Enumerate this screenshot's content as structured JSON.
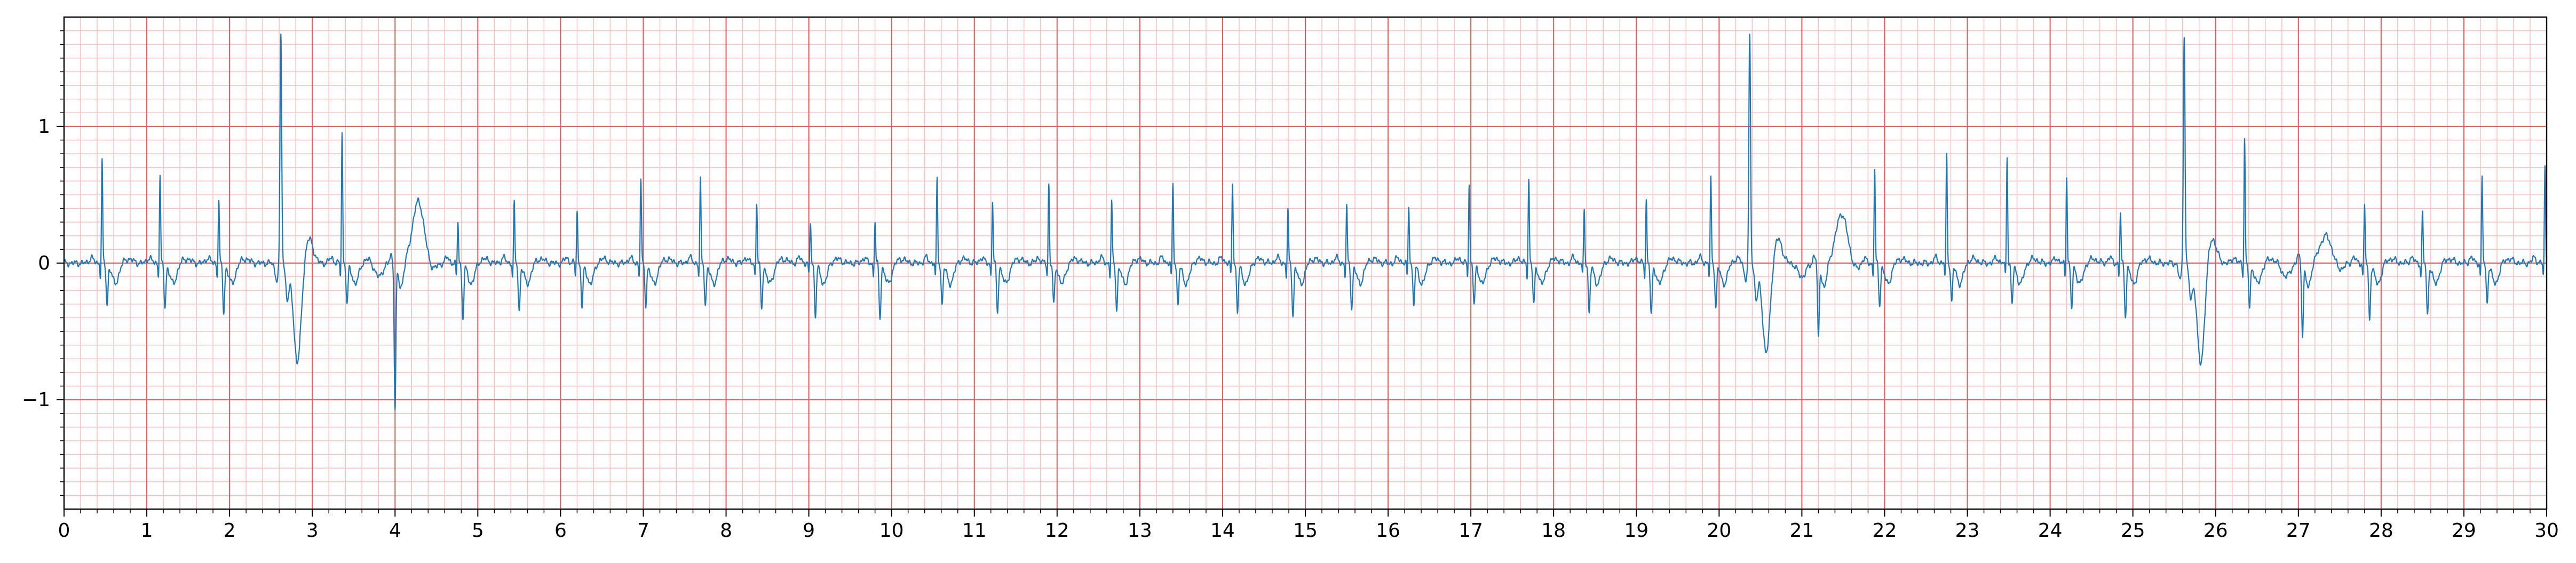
{
  "chart_data": {
    "type": "line",
    "title": "",
    "xlabel": "",
    "ylabel": "",
    "xlim": [
      0,
      30
    ],
    "ylim": [
      -1.8,
      1.8
    ],
    "x_ticks": [
      0,
      1,
      2,
      3,
      4,
      5,
      6,
      7,
      8,
      9,
      10,
      11,
      12,
      13,
      14,
      15,
      16,
      17,
      18,
      19,
      20,
      21,
      22,
      23,
      24,
      25,
      26,
      27,
      28,
      29,
      30
    ],
    "x_tick_labels": [
      "0",
      "1",
      "2",
      "3",
      "4",
      "5",
      "6",
      "7",
      "8",
      "9",
      "10",
      "11",
      "12",
      "13",
      "14",
      "15",
      "16",
      "17",
      "18",
      "19",
      "20",
      "21",
      "22",
      "23",
      "24",
      "25",
      "26",
      "27",
      "28",
      "29",
      "30"
    ],
    "y_ticks": [
      -1,
      0,
      1
    ],
    "y_tick_labels": [
      "−1",
      "0",
      "1"
    ],
    "grid": {
      "major": true,
      "minor": true,
      "major_color": "#e8565a",
      "minor_color": "#f7bcbc",
      "minor_x_step": 0.2,
      "minor_y_step": 0.1
    },
    "line_color": "#1f77b4",
    "baseline": 0.0,
    "beats": [
      {
        "t": 0.46,
        "r": 0.75,
        "s": -0.3,
        "tw": 0.03,
        "kind": "n"
      },
      {
        "t": 1.16,
        "r": 0.64,
        "s": -0.32,
        "tw": 0.03,
        "kind": "n"
      },
      {
        "t": 1.87,
        "r": 0.46,
        "s": -0.36,
        "tw": 0.03,
        "kind": "n"
      },
      {
        "t": 2.62,
        "r": 1.67,
        "s": -0.73,
        "tw": 0.0,
        "kind": "v"
      },
      {
        "t": 3.36,
        "r": 0.95,
        "s": -0.3,
        "tw": 0.03,
        "kind": "n"
      },
      {
        "t": 4.0,
        "r": 0.08,
        "s": -1.05,
        "tw": 0.45,
        "kind": "v2"
      },
      {
        "t": 4.76,
        "r": 0.3,
        "s": -0.4,
        "tw": 0.03,
        "kind": "n"
      },
      {
        "t": 5.44,
        "r": 0.43,
        "s": -0.35,
        "tw": 0.03,
        "kind": "n"
      },
      {
        "t": 6.2,
        "r": 0.39,
        "s": -0.32,
        "tw": 0.03,
        "kind": "n"
      },
      {
        "t": 6.97,
        "r": 0.62,
        "s": -0.3,
        "tw": 0.03,
        "kind": "n"
      },
      {
        "t": 7.69,
        "r": 0.61,
        "s": -0.3,
        "tw": 0.03,
        "kind": "n"
      },
      {
        "t": 8.37,
        "r": 0.44,
        "s": -0.33,
        "tw": 0.03,
        "kind": "n"
      },
      {
        "t": 9.02,
        "r": 0.3,
        "s": -0.38,
        "tw": 0.03,
        "kind": "n"
      },
      {
        "t": 9.8,
        "r": 0.3,
        "s": -0.4,
        "tw": 0.03,
        "kind": "n"
      },
      {
        "t": 10.55,
        "r": 0.61,
        "s": -0.3,
        "tw": 0.03,
        "kind": "n"
      },
      {
        "t": 11.22,
        "r": 0.45,
        "s": -0.35,
        "tw": 0.03,
        "kind": "n"
      },
      {
        "t": 11.9,
        "r": 0.58,
        "s": -0.3,
        "tw": 0.03,
        "kind": "n"
      },
      {
        "t": 12.66,
        "r": 0.45,
        "s": -0.33,
        "tw": 0.03,
        "kind": "n"
      },
      {
        "t": 13.4,
        "r": 0.58,
        "s": -0.3,
        "tw": 0.03,
        "kind": "n"
      },
      {
        "t": 14.12,
        "r": 0.6,
        "s": -0.35,
        "tw": 0.03,
        "kind": "n"
      },
      {
        "t": 14.79,
        "r": 0.38,
        "s": -0.38,
        "tw": 0.03,
        "kind": "n"
      },
      {
        "t": 15.5,
        "r": 0.41,
        "s": -0.33,
        "tw": 0.03,
        "kind": "n"
      },
      {
        "t": 16.25,
        "r": 0.42,
        "s": -0.3,
        "tw": 0.03,
        "kind": "n"
      },
      {
        "t": 16.98,
        "r": 0.58,
        "s": -0.3,
        "tw": 0.03,
        "kind": "n"
      },
      {
        "t": 17.7,
        "r": 0.61,
        "s": -0.3,
        "tw": 0.03,
        "kind": "n"
      },
      {
        "t": 18.37,
        "r": 0.39,
        "s": -0.36,
        "tw": 0.03,
        "kind": "n"
      },
      {
        "t": 19.12,
        "r": 0.46,
        "s": -0.38,
        "tw": 0.03,
        "kind": "n"
      },
      {
        "t": 19.9,
        "r": 0.62,
        "s": -0.32,
        "tw": 0.03,
        "kind": "n"
      },
      {
        "t": 20.37,
        "r": 1.66,
        "s": -0.66,
        "tw": 0.0,
        "kind": "v"
      },
      {
        "t": 21.2,
        "r": 0.08,
        "s": -0.55,
        "tw": 0.36,
        "kind": "v2"
      },
      {
        "t": 21.88,
        "r": 0.68,
        "s": -0.3,
        "tw": 0.03,
        "kind": "n"
      },
      {
        "t": 22.75,
        "r": 0.79,
        "s": -0.28,
        "tw": 0.03,
        "kind": "n"
      },
      {
        "t": 23.48,
        "r": 0.78,
        "s": -0.3,
        "tw": 0.03,
        "kind": "n"
      },
      {
        "t": 24.2,
        "r": 0.64,
        "s": -0.33,
        "tw": 0.03,
        "kind": "n"
      },
      {
        "t": 24.85,
        "r": 0.36,
        "s": -0.38,
        "tw": 0.03,
        "kind": "n"
      },
      {
        "t": 25.62,
        "r": 1.67,
        "s": -0.74,
        "tw": 0.0,
        "kind": "v"
      },
      {
        "t": 26.35,
        "r": 0.92,
        "s": -0.32,
        "tw": 0.03,
        "kind": "n"
      },
      {
        "t": 27.05,
        "r": 0.05,
        "s": -0.52,
        "tw": 0.2,
        "kind": "v2"
      },
      {
        "t": 27.8,
        "r": 0.43,
        "s": -0.4,
        "tw": 0.03,
        "kind": "n"
      },
      {
        "t": 28.5,
        "r": 0.36,
        "s": -0.38,
        "tw": 0.03,
        "kind": "n"
      },
      {
        "t": 29.22,
        "r": 0.63,
        "s": -0.28,
        "tw": 0.03,
        "kind": "n"
      },
      {
        "t": 29.98,
        "r": 0.7,
        "s": -0.25,
        "tw": 0.03,
        "kind": "n"
      }
    ]
  }
}
